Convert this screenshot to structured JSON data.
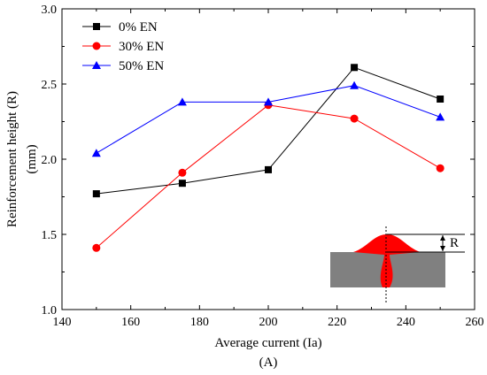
{
  "chart_data": {
    "type": "line",
    "xlabel": "Average current (Ia)",
    "xlabel_unit": "(A)",
    "ylabel": "Reinforcement height (R)",
    "ylabel_unit": "(mm)",
    "xlim": [
      140,
      260
    ],
    "ylim": [
      1.0,
      3.0
    ],
    "xticks": [
      140,
      160,
      180,
      200,
      220,
      240,
      260
    ],
    "yticks": [
      1.0,
      1.5,
      2.0,
      2.5,
      3.0
    ],
    "ytick_labels": [
      "1.0",
      "1.5",
      "2.0",
      "2.5",
      "3.0"
    ],
    "x": [
      150,
      175,
      200,
      225,
      250
    ],
    "series": [
      {
        "name": "0% EN",
        "values": [
          1.77,
          1.84,
          1.93,
          2.61,
          2.4
        ],
        "color": "#000000",
        "marker": "square"
      },
      {
        "name": "30% EN",
        "values": [
          1.41,
          1.91,
          2.36,
          2.27,
          1.94
        ],
        "color": "#ff0000",
        "marker": "circle"
      },
      {
        "name": "50% EN",
        "values": [
          2.04,
          2.38,
          2.38,
          2.49,
          2.28
        ],
        "color": "#0000ff",
        "marker": "triangle"
      }
    ],
    "legend_position": "top-left",
    "grid": false,
    "inset": {
      "label": "R",
      "plate_color": "#808080",
      "bead_color": "#ff0000"
    }
  }
}
